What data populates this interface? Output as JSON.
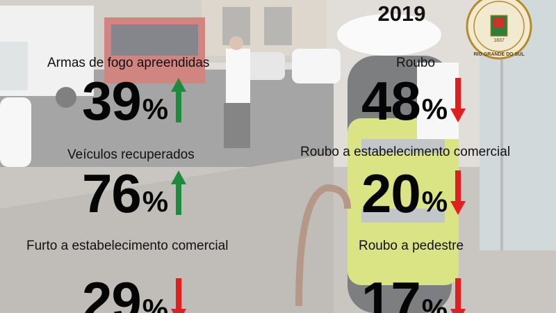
{
  "header": {
    "year": "2019"
  },
  "seal": {
    "year": "1837",
    "text": "RIO GRANDE DO SUL"
  },
  "colors": {
    "up": "#1e8a3c",
    "down": "#e02020",
    "text": "#050505"
  },
  "stats": [
    {
      "label": "Armas de fogo apreendidas",
      "value": "39",
      "unit": "%",
      "trend": "up"
    },
    {
      "label": "Roubo",
      "value": "48",
      "unit": "%",
      "trend": "down"
    },
    {
      "label": "Veículos recuperados",
      "value": "76",
      "unit": "%",
      "trend": "up"
    },
    {
      "label": "Roubo a estabelecimento comercial",
      "value": "20",
      "unit": "%",
      "trend": "down"
    },
    {
      "label": "Furto a estabelecimento comercial",
      "value": "29",
      "unit": "%",
      "trend": "down"
    },
    {
      "label": "Roubo a pedestre",
      "value": "17",
      "unit": "%",
      "trend": "down"
    }
  ]
}
